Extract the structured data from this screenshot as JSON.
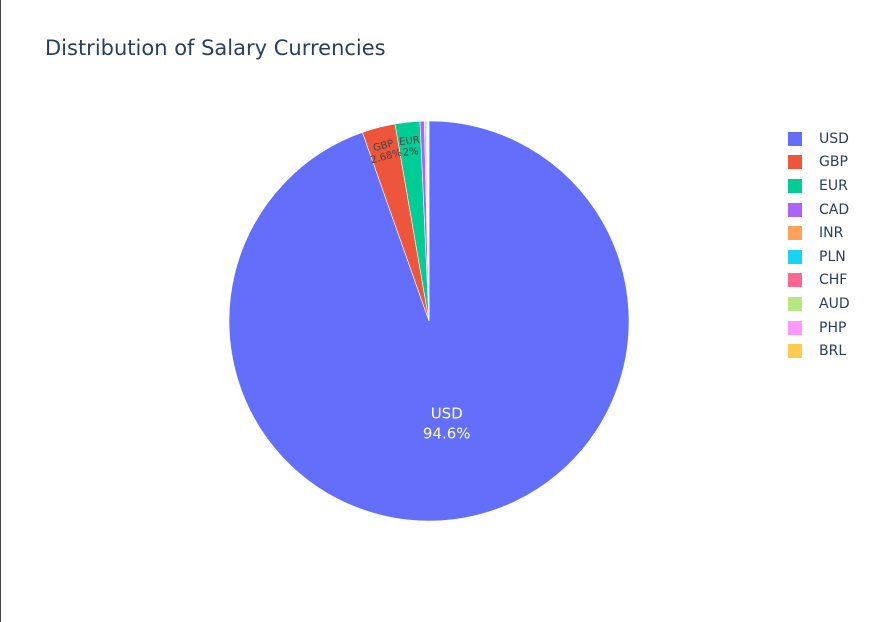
{
  "chart_data": {
    "type": "pie",
    "title": "Distribution of Salary Currencies",
    "labels": [
      "USD",
      "GBP",
      "EUR",
      "CAD",
      "INR",
      "PLN",
      "CHF",
      "AUD",
      "PHP",
      "BRL"
    ],
    "values": [
      94.6,
      2.68,
      2.0,
      0.35,
      0.12,
      0.08,
      0.06,
      0.05,
      0.03,
      0.03
    ],
    "value_unit": "%",
    "colors": [
      "#636efa",
      "#EF553B",
      "#00cc96",
      "#ab63fa",
      "#FFA15A",
      "#19d3f3",
      "#FF6692",
      "#B6E880",
      "#FF97FF",
      "#FECB52"
    ],
    "slice_labels": [
      {
        "label": "USD",
        "text": "94.6%"
      },
      {
        "label": "GBP",
        "text": "2.68%"
      },
      {
        "label": "EUR",
        "text": "2%"
      }
    ],
    "legend_position": "right",
    "direction": "clockwise",
    "start": "top"
  }
}
